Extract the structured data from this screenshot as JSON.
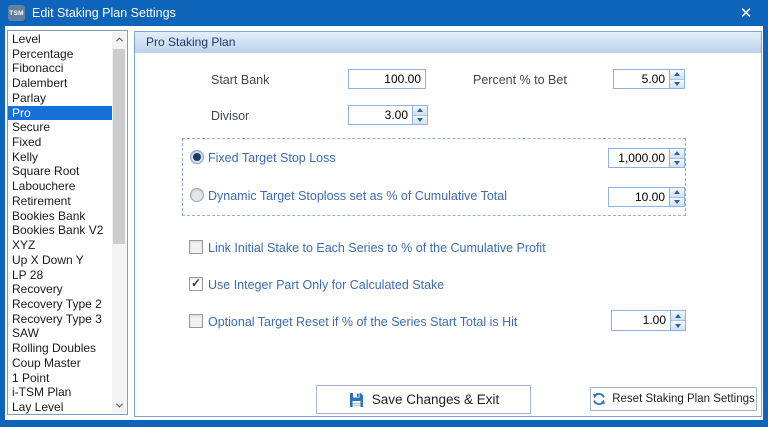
{
  "window": {
    "title": "Edit Staking Plan Settings",
    "icon_text": "TSM",
    "close_glyph": "✕"
  },
  "sidebar": {
    "items": [
      "Level",
      "Percentage",
      "Fibonacci",
      "Dalembert",
      "Parlay",
      "Pro",
      "Secure",
      "Fixed",
      "Kelly",
      "Square Root",
      "Labouchere",
      "Retirement",
      "Bookies Bank",
      "Bookies Bank V2",
      "XYZ",
      "Up X Down Y",
      "LP 28",
      "Recovery",
      "Recovery Type 2",
      "Recovery Type 3",
      "SAW",
      "Rolling Doubles",
      "Coup Master",
      "1 Point",
      "i-TSM Plan",
      "Lay Level"
    ],
    "selected": "Pro"
  },
  "panel": {
    "header": "Pro Staking Plan",
    "fields": {
      "start_bank": {
        "label": "Start Bank",
        "value": "100.00"
      },
      "percent_to_bet": {
        "label": "Percent % to Bet",
        "value": "5.00"
      },
      "divisor": {
        "label": "Divisor",
        "value": "3.00"
      }
    },
    "target_group": {
      "fixed": {
        "label": "Fixed Target Stop Loss",
        "value": "1,000.00",
        "selected": true
      },
      "dynamic": {
        "label": "Dynamic Target Stoploss set as % of Cumulative Total",
        "value": "10.00",
        "selected": false
      }
    },
    "checkboxes": {
      "link_initial": {
        "label": "Link Initial Stake to Each Series to % of the Cumulative Profit",
        "checked": false
      },
      "integer_part": {
        "label": "Use Integer Part Only for Calculated Stake",
        "checked": true
      },
      "target_reset": {
        "label": "Optional Target Reset if % of the Series Start Total is Hit",
        "checked": false,
        "value": "1.00"
      }
    },
    "buttons": {
      "save": "Save Changes & Exit",
      "reset": "Reset Staking Plan Settings"
    }
  },
  "colors": {
    "titlebar": "#0d64b8",
    "selection": "#1571d9",
    "header_text": "#1f3864",
    "option_label_blue": "#3c6cb4",
    "icon_blue": "#2e74b5"
  }
}
